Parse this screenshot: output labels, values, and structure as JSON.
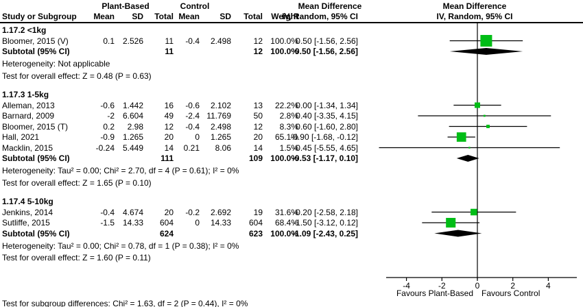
{
  "table_header": {
    "study_col": "Study or Subgroup",
    "group1": "Plant-Based",
    "group2": "Control",
    "group3": "Mean Difference",
    "mean": "Mean",
    "sd": "SD",
    "total": "Total",
    "weight": "Weight",
    "ci": "IV, Random, 95% CI",
    "plot_title1": "Mean Difference",
    "plot_title2": "IV, Random, 95% CI"
  },
  "colors": {
    "square": "#00bd16",
    "diamond": "#000000",
    "line": "#000000",
    "text": "#000000"
  },
  "chart_data": {
    "type": "forest_plot",
    "effect_label": "Mean Difference",
    "model": "IV, Random, 95% CI",
    "axis": {
      "ticks": [
        -4,
        -2,
        0,
        2,
        4
      ],
      "xmin": -5.6,
      "xmax": 5.6,
      "favours_left": "Favours Plant-Based",
      "favours_right": "Favours Control"
    },
    "subgroups": [
      {
        "label": "1.17.2 <1kg",
        "studies": [
          {
            "name": "Bloomer, 2015 (V)",
            "mean_t": "0.1",
            "sd_t": "2.526",
            "n_t": "11",
            "mean_c": "-0.4",
            "sd_c": "2.498",
            "n_c": "12",
            "weight": "100.0%",
            "weight_pct": 100.0,
            "md": 0.5,
            "lo": -1.56,
            "hi": 2.56,
            "ci_text": "0.50 [-1.56, 2.56]"
          }
        ],
        "subtotal": {
          "label": "Subtotal (95% CI)",
          "n_t": "11",
          "n_c": "12",
          "weight": "100.0%",
          "md": 0.5,
          "lo": -1.56,
          "hi": 2.56,
          "ci_text": "0.50 [-1.56, 2.56]"
        },
        "heterogeneity": "Heterogeneity: Not applicable",
        "overall": "Test for overall effect: Z = 0.48 (P = 0.63)"
      },
      {
        "label": "1.17.3 1-5kg",
        "studies": [
          {
            "name": "Alleman, 2013",
            "mean_t": "-0.6",
            "sd_t": "1.442",
            "n_t": "16",
            "mean_c": "-0.6",
            "sd_c": "2.102",
            "n_c": "13",
            "weight": "22.2%",
            "weight_pct": 22.2,
            "md": 0.0,
            "lo": -1.34,
            "hi": 1.34,
            "ci_text": "0.00 [-1.34, 1.34]"
          },
          {
            "name": "Barnard, 2009",
            "mean_t": "-2",
            "sd_t": "6.604",
            "n_t": "49",
            "mean_c": "-2.4",
            "sd_c": "11.769",
            "n_c": "50",
            "weight": "2.8%",
            "weight_pct": 2.8,
            "md": 0.4,
            "lo": -3.35,
            "hi": 4.15,
            "ci_text": "0.40 [-3.35, 4.15]"
          },
          {
            "name": "Bloomer, 2015 (T)",
            "mean_t": "0.2",
            "sd_t": "2.98",
            "n_t": "12",
            "mean_c": "-0.4",
            "sd_c": "2.498",
            "n_c": "12",
            "weight": "8.3%",
            "weight_pct": 8.3,
            "md": 0.6,
            "lo": -1.6,
            "hi": 2.8,
            "ci_text": "0.60 [-1.60, 2.80]"
          },
          {
            "name": "Hall, 2021",
            "mean_t": "-0.9",
            "sd_t": "1.265",
            "n_t": "20",
            "mean_c": "0",
            "sd_c": "1.265",
            "n_c": "20",
            "weight": "65.1%",
            "weight_pct": 65.1,
            "md": -0.9,
            "lo": -1.68,
            "hi": -0.12,
            "ci_text": "-0.90 [-1.68, -0.12]"
          },
          {
            "name": "Macklin, 2015",
            "mean_t": "-0.24",
            "sd_t": "5.449",
            "n_t": "14",
            "mean_c": "0.21",
            "sd_c": "8.06",
            "n_c": "14",
            "weight": "1.5%",
            "weight_pct": 1.5,
            "md": -0.45,
            "lo": -5.55,
            "hi": 4.65,
            "ci_text": "-0.45 [-5.55, 4.65]"
          }
        ],
        "subtotal": {
          "label": "Subtotal (95% CI)",
          "n_t": "111",
          "n_c": "109",
          "weight": "100.0%",
          "md": -0.53,
          "lo": -1.17,
          "hi": 0.1,
          "ci_text": "-0.53 [-1.17, 0.10]"
        },
        "heterogeneity": "Heterogeneity: Tau² = 0.00; Chi² = 2.70, df = 4 (P = 0.61); I² = 0%",
        "overall": "Test for overall effect: Z = 1.65 (P = 0.10)"
      },
      {
        "label": "1.17.4 5-10kg",
        "studies": [
          {
            "name": "Jenkins, 2014",
            "mean_t": "-0.4",
            "sd_t": "4.674",
            "n_t": "20",
            "mean_c": "-0.2",
            "sd_c": "2.692",
            "n_c": "19",
            "weight": "31.6%",
            "weight_pct": 31.6,
            "md": -0.2,
            "lo": -2.58,
            "hi": 2.18,
            "ci_text": "-0.20 [-2.58, 2.18]"
          },
          {
            "name": "Sutliffe, 2015",
            "mean_t": "-1.5",
            "sd_t": "14.33",
            "n_t": "604",
            "mean_c": "0",
            "sd_c": "14.33",
            "n_c": "604",
            "weight": "68.4%",
            "weight_pct": 68.4,
            "md": -1.5,
            "lo": -3.12,
            "hi": 0.12,
            "ci_text": "-1.50 [-3.12, 0.12]"
          }
        ],
        "subtotal": {
          "label": "Subtotal (95% CI)",
          "n_t": "624",
          "n_c": "623",
          "weight": "100.0%",
          "md": -1.09,
          "lo": -2.43,
          "hi": 0.25,
          "ci_text": "-1.09 [-2.43, 0.25]"
        },
        "heterogeneity": "Heterogeneity: Tau² = 0.00; Chi² = 0.78, df = 1 (P = 0.38); I² = 0%",
        "overall": "Test for overall effect: Z = 1.60 (P = 0.11)"
      }
    ],
    "subgroup_difference": "Test for subgroup differences: Chi² = 1.63, df = 2 (P = 0.44), I² = 0%"
  }
}
